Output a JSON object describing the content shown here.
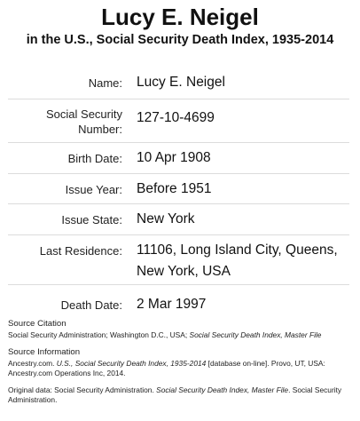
{
  "header": {
    "title": "Lucy E. Neigel",
    "subtitle": "in the U.S., Social Security Death Index, 1935-2014"
  },
  "records": [
    {
      "label": "Name:",
      "value": "Lucy E. Neigel"
    },
    {
      "label": "Social Security Number:",
      "value": "127-10-4699"
    },
    {
      "label": "Birth Date:",
      "value": "10 Apr 1908"
    },
    {
      "label": "Issue Year:",
      "value": "Before 1951"
    },
    {
      "label": "Issue State:",
      "value": "New York"
    },
    {
      "label": "Last Residence:",
      "value_line1": "11106, Long Island City, Queens,",
      "value_line2": "New York, USA"
    },
    {
      "label": "Death Date:",
      "value": "2 Mar 1997"
    }
  ],
  "sources": {
    "citation_heading": "Source Citation",
    "citation_plain": "Social Security Administration; Washington D.C., USA; ",
    "citation_italic": "Social Security Death Index, Master File",
    "information_heading": "Source Information",
    "information_part1": "Ancestry.com. ",
    "information_part2": "U.S., Social Security Death Index, 1935-2014",
    "information_part3": " [database on-line]. Provo, UT, USA: Ancestry.com Operations Inc, 2014.",
    "original_part1": "Original data: Social Security Administration. ",
    "original_part2": "Social Security Death Index, Master File",
    "original_part3": ". Social Security Administration."
  }
}
